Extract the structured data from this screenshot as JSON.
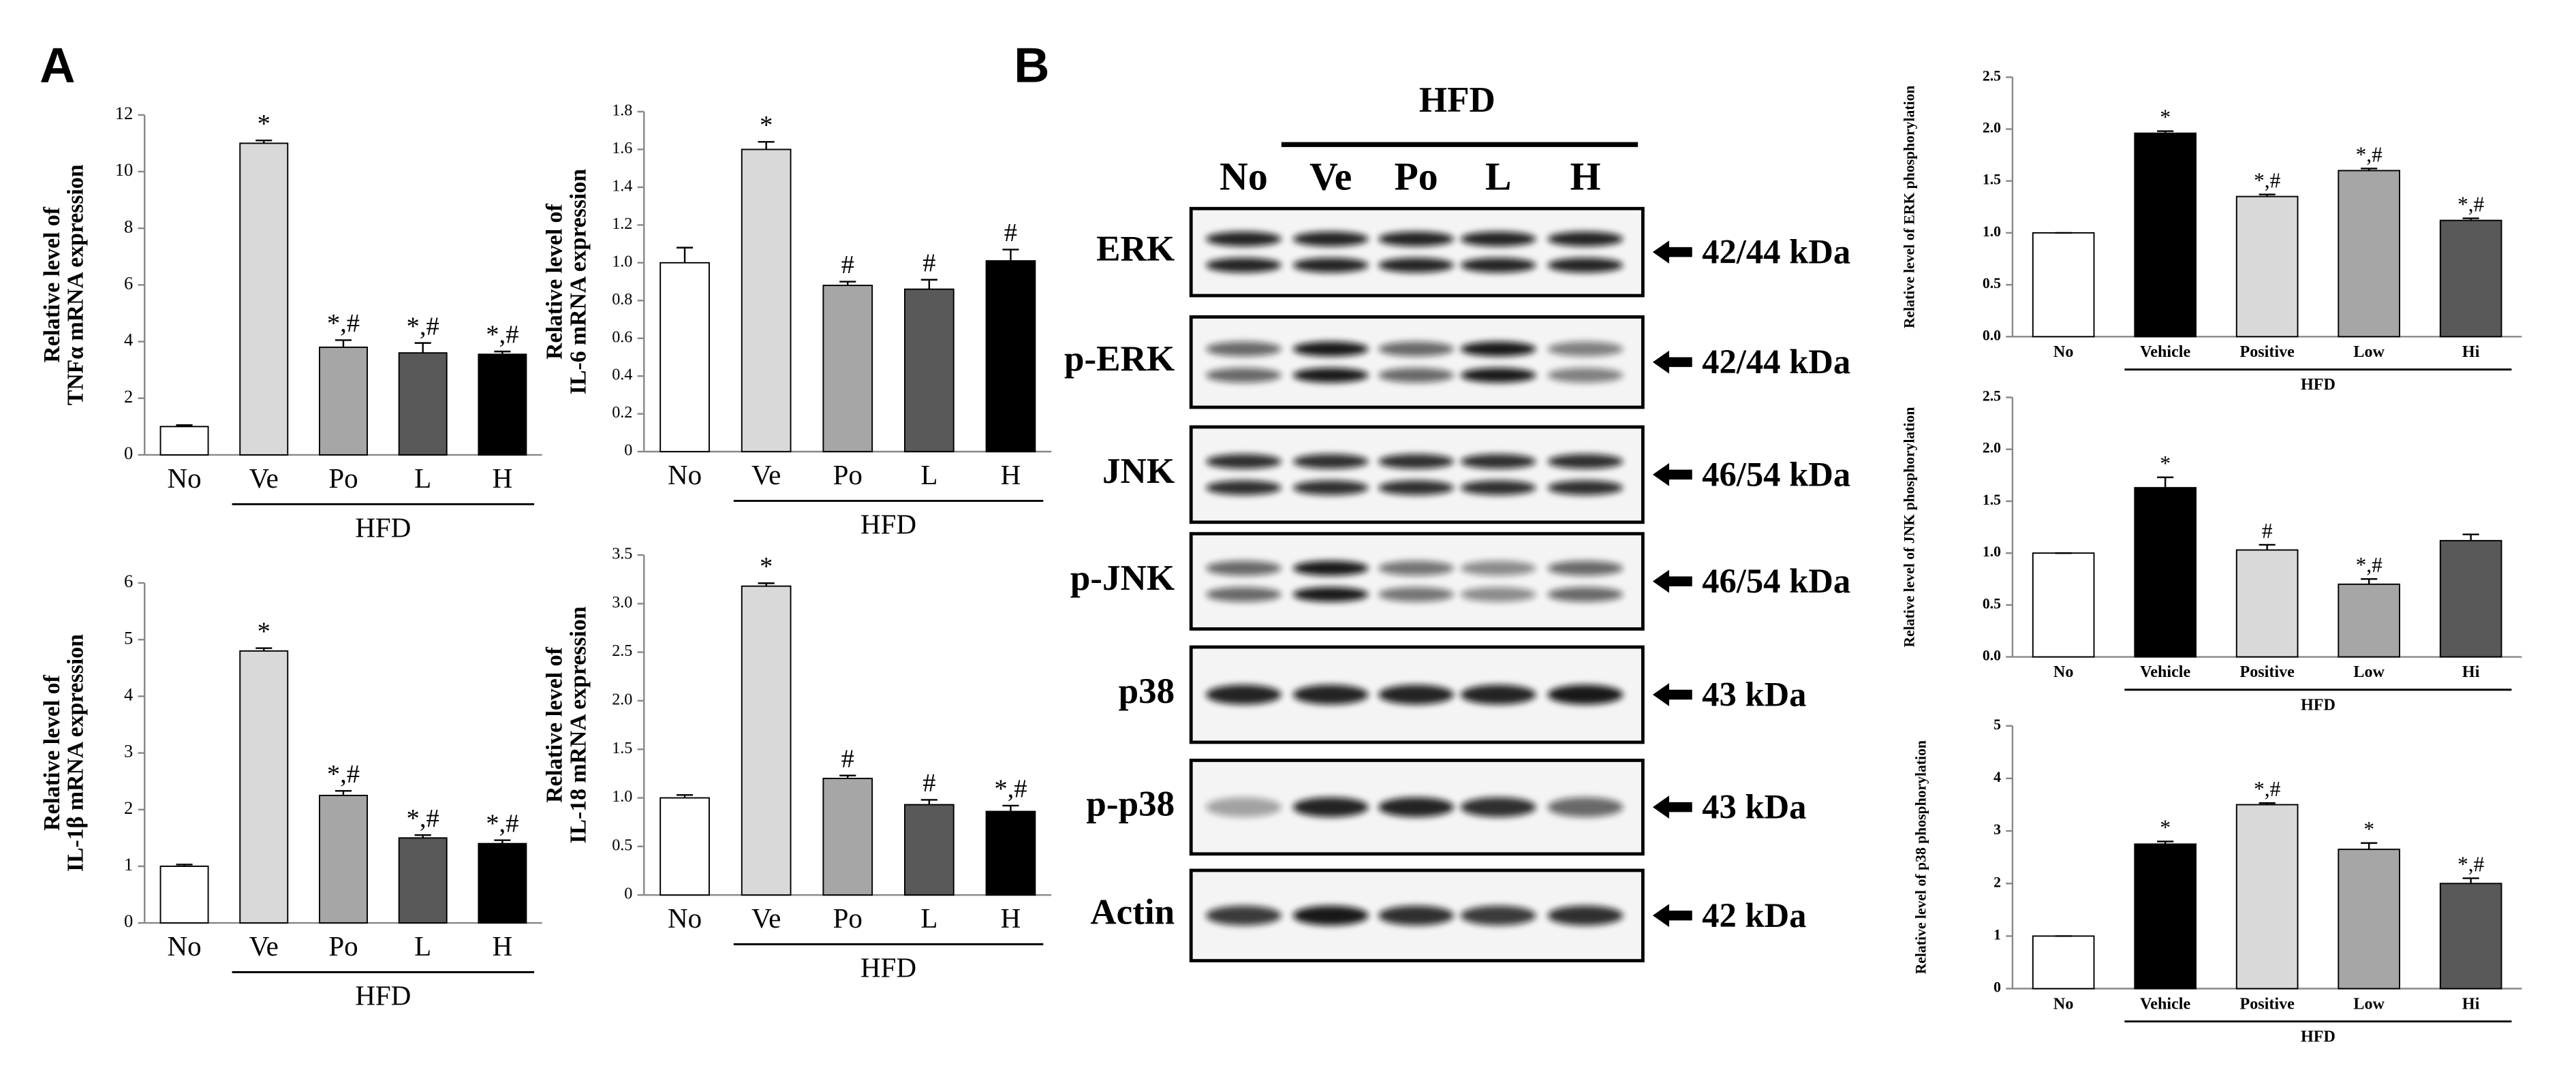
{
  "panel_labels": [
    "A",
    "B"
  ],
  "chart_data": [
    {
      "type": "bar",
      "ylabel": [
        "Relative level of",
        "TNFα mRNA expression"
      ],
      "categories": [
        "No",
        "Ve",
        "Po",
        "L",
        "H"
      ],
      "values": [
        1.0,
        11.0,
        3.8,
        3.6,
        3.55
      ],
      "errors": [
        0.05,
        0.1,
        0.25,
        0.35,
        0.1
      ],
      "annotations": [
        null,
        "*",
        "*,#",
        "*,#",
        "*,#"
      ],
      "colors": [
        "#ffffff",
        "#d9d9d9",
        "#a6a6a6",
        "#595959",
        "#000000"
      ],
      "group": "HFD",
      "ylim": [
        0,
        12
      ],
      "yticks": [
        0,
        2,
        4,
        6,
        8,
        10,
        12
      ]
    },
    {
      "type": "bar",
      "ylabel": [
        "Relative level of",
        "IL-6 mRNA expression"
      ],
      "categories": [
        "No",
        "Ve",
        "Po",
        "L",
        "H"
      ],
      "values": [
        1.0,
        1.6,
        0.88,
        0.86,
        1.01
      ],
      "errors": [
        0.08,
        0.04,
        0.02,
        0.05,
        0.06
      ],
      "annotations": [
        null,
        "*",
        "#",
        "#",
        "#"
      ],
      "colors": [
        "#ffffff",
        "#d9d9d9",
        "#a6a6a6",
        "#595959",
        "#000000"
      ],
      "group": "HFD",
      "ylim": [
        0,
        1.8
      ],
      "yticks": [
        0,
        0.2,
        0.4,
        0.6,
        0.8,
        {
          "value": 1,
          "label": "1.0"
        },
        1.2,
        1.4,
        1.6,
        1.8
      ]
    },
    {
      "type": "bar",
      "ylabel": [
        "Relative level of",
        "IL-1β mRNA expression"
      ],
      "categories": [
        "No",
        "Ve",
        "Po",
        "L",
        "H"
      ],
      "values": [
        1.0,
        4.8,
        2.25,
        1.5,
        1.4
      ],
      "errors": [
        0.03,
        0.05,
        0.08,
        0.05,
        0.06
      ],
      "annotations": [
        null,
        "*",
        "*,#",
        "*,#",
        "*,#"
      ],
      "colors": [
        "#ffffff",
        "#d9d9d9",
        "#a6a6a6",
        "#595959",
        "#000000"
      ],
      "group": "HFD",
      "ylim": [
        0,
        6
      ],
      "yticks": [
        0,
        1,
        2,
        3,
        4,
        5,
        6
      ]
    },
    {
      "type": "bar",
      "ylabel": [
        "Relative level of",
        "IL-18 mRNA expression"
      ],
      "categories": [
        "No",
        "Ve",
        "Po",
        "L",
        "H"
      ],
      "values": [
        1.0,
        3.18,
        1.2,
        0.93,
        0.86
      ],
      "errors": [
        0.03,
        0.03,
        0.03,
        0.05,
        0.06
      ],
      "annotations": [
        null,
        "*",
        "#",
        "#",
        "*,#"
      ],
      "colors": [
        "#ffffff",
        "#d9d9d9",
        "#a6a6a6",
        "#595959",
        "#000000"
      ],
      "group": "HFD",
      "ylim": [
        0,
        3.5
      ],
      "yticks": [
        0,
        0.5,
        {
          "value": 1,
          "label": "1.0"
        },
        1.5,
        {
          "value": 2,
          "label": "2.0"
        },
        2.5,
        {
          "value": 3,
          "label": "3.0"
        },
        3.5
      ]
    },
    {
      "type": "bar",
      "ylabel": [
        "Relative level of ERK phosphorylation"
      ],
      "categories": [
        "No",
        "Vehicle",
        "Positive",
        "Low",
        "Hi"
      ],
      "values": [
        1.0,
        1.96,
        1.35,
        1.6,
        1.12
      ],
      "errors": [
        0,
        0.02,
        0.02,
        0.02,
        0.02
      ],
      "annotations": [
        null,
        "*",
        "*,#",
        "*,#",
        "*,#"
      ],
      "colors": [
        "#ffffff",
        "#000000",
        "#d9d9d9",
        "#a6a6a6",
        "#595959"
      ],
      "group": "HFD",
      "ylim": [
        0,
        2.5
      ],
      "yticks": [
        {
          "value": 0,
          "label": "0.0"
        },
        0.5,
        {
          "value": 1,
          "label": "1.0"
        },
        1.5,
        {
          "value": 2,
          "label": "2.0"
        },
        2.5
      ]
    },
    {
      "type": "bar",
      "ylabel": [
        "Relative level of JNK phosphorylation"
      ],
      "categories": [
        "No",
        "Vehicle",
        "Positive",
        "Low",
        "Hi"
      ],
      "values": [
        1.0,
        1.63,
        1.03,
        0.7,
        1.12
      ],
      "errors": [
        0,
        0.1,
        0.05,
        0.05,
        0.06
      ],
      "annotations": [
        null,
        "*",
        "#",
        "*,#",
        null
      ],
      "colors": [
        "#ffffff",
        "#000000",
        "#d9d9d9",
        "#a6a6a6",
        "#595959"
      ],
      "group": "HFD",
      "ylim": [
        0,
        2.5
      ],
      "yticks": [
        {
          "value": 0,
          "label": "0.0"
        },
        0.5,
        {
          "value": 1,
          "label": "1.0"
        },
        1.5,
        {
          "value": 2,
          "label": "2.0"
        },
        2.5
      ]
    },
    {
      "type": "bar",
      "ylabel": [
        "Relative level of p38 phosphorylation"
      ],
      "categories": [
        "No",
        "Vehicle",
        "Positive",
        "Low",
        "Hi"
      ],
      "values": [
        1.0,
        2.75,
        3.5,
        2.65,
        2.0
      ],
      "errors": [
        0,
        0.05,
        0.03,
        0.12,
        0.1
      ],
      "annotations": [
        null,
        "*",
        "*,#",
        "*",
        "*,#"
      ],
      "colors": [
        "#ffffff",
        "#000000",
        "#d9d9d9",
        "#a6a6a6",
        "#595959"
      ],
      "group": "HFD",
      "ylim": [
        0,
        5
      ],
      "yticks": [
        0,
        1,
        2,
        3,
        4,
        5
      ]
    }
  ],
  "blot": {
    "group": "HFD",
    "lanes": [
      "No",
      "Ve",
      "Po",
      "L",
      "H"
    ],
    "rows": [
      {
        "label": "ERK",
        "size": "42/44 kDa"
      },
      {
        "label": "p-ERK",
        "size": "42/44 kDa"
      },
      {
        "label": "JNK",
        "size": "46/54 kDa"
      },
      {
        "label": "p-JNK",
        "size": "46/54 kDa"
      },
      {
        "label": "p38",
        "size": "43 kDa"
      },
      {
        "label": "p-p38",
        "size": "43 kDa"
      },
      {
        "label": "Actin",
        "size": "42 kDa"
      }
    ]
  }
}
